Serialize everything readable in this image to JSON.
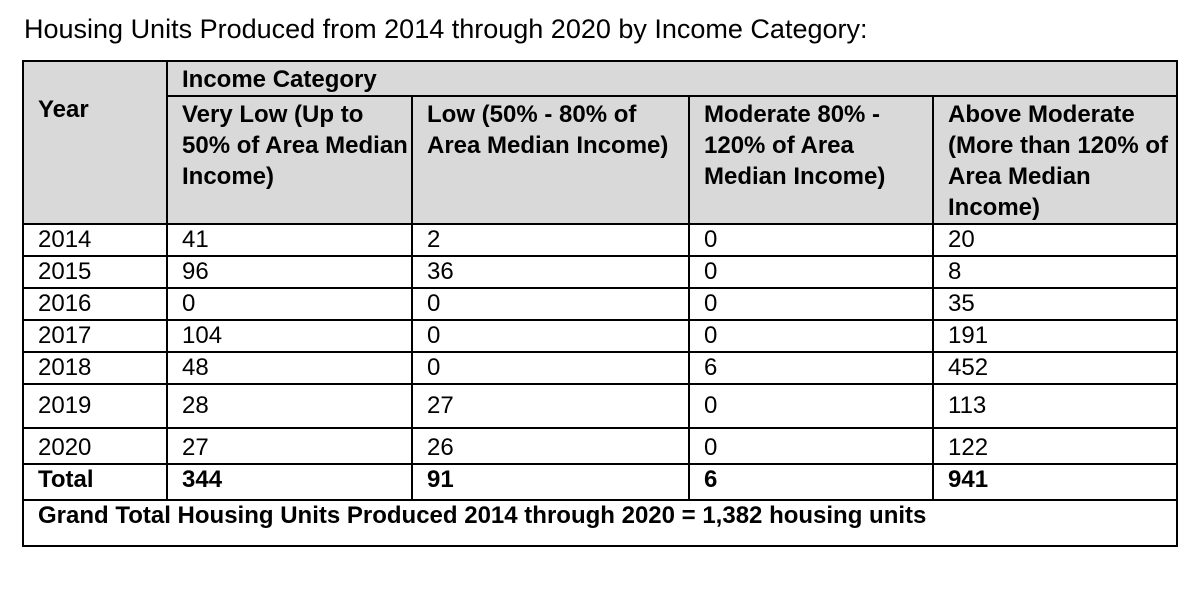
{
  "title": "Housing Units Produced from 2014 through 2020 by Income Category:",
  "table": {
    "year_header": "Year",
    "category_header": "Income Category",
    "columns": [
      "Very Low (Up to 50% of Area Median Income)",
      "Low (50% - 80% of Area Median Income)",
      "Moderate 80% - 120% of Area Median Income)",
      "Above Moderate (More than 120% of Area Median Income)"
    ],
    "rows": [
      {
        "year": "2014",
        "very_low": "41",
        "low": "2",
        "moderate": "0",
        "above_moderate": "20"
      },
      {
        "year": "2015",
        "very_low": "96",
        "low": "36",
        "moderate": "0",
        "above_moderate": "8"
      },
      {
        "year": "2016",
        "very_low": "0",
        "low": "0",
        "moderate": "0",
        "above_moderate": "35"
      },
      {
        "year": "2017",
        "very_low": "104",
        "low": "0",
        "moderate": "0",
        "above_moderate": "191"
      },
      {
        "year": "2018",
        "very_low": "48",
        "low": "0",
        "moderate": "6",
        "above_moderate": "452"
      },
      {
        "year": "2019",
        "very_low": "28",
        "low": "27",
        "moderate": "0",
        "above_moderate": "113"
      },
      {
        "year": "2020",
        "very_low": "27",
        "low": "26",
        "moderate": "0",
        "above_moderate": "122"
      }
    ],
    "total": {
      "label": "Total",
      "very_low": "344",
      "low": "91",
      "moderate": "6",
      "above_moderate": "941"
    },
    "grand_total": "Grand Total Housing Units Produced 2014 through 2020 = 1,382 housing units"
  }
}
